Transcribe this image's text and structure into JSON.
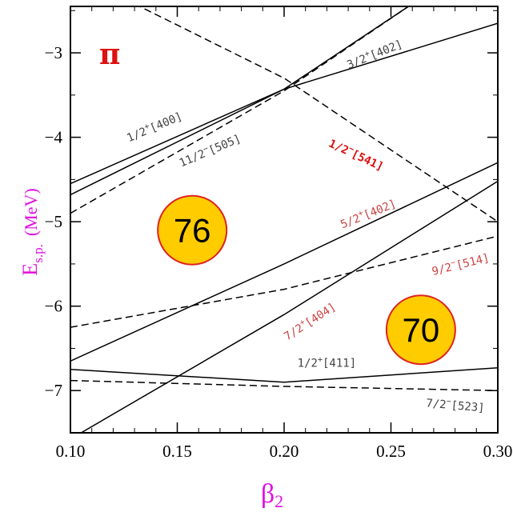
{
  "chart_data": {
    "type": "line",
    "panel_label": "π",
    "xlabel": "β",
    "xlabel_sub": "2",
    "ylabel": "E",
    "ylabel_sub": "s.p.",
    "ylabel_unit": "(MeV)",
    "xlim": [
      0.1,
      0.3
    ],
    "ylim": [
      -7.5,
      -2.45
    ],
    "xticks": [
      0.1,
      0.15,
      0.2,
      0.25,
      0.3
    ],
    "xtick_labels": [
      "0.10",
      "0.15",
      "0.20",
      "0.25",
      "0.30"
    ],
    "yticks": [
      -7,
      -6,
      -5,
      -4,
      -3
    ],
    "ytick_labels": [
      "−7",
      "−6",
      "−5",
      "−4",
      "−3"
    ],
    "series": [
      {
        "name": "3/2+[402]",
        "style": "solid",
        "points": [
          [
            0.1,
            -4.55
          ],
          [
            0.2,
            -3.43
          ],
          [
            0.3,
            -2.65
          ]
        ]
      },
      {
        "name": "1/2+[400]",
        "style": "solid",
        "points": [
          [
            0.1,
            -4.68
          ],
          [
            0.2,
            -3.43
          ],
          [
            0.26,
            -2.42
          ]
        ]
      },
      {
        "name": "11/2-[505]",
        "style": "dashed",
        "points": [
          [
            0.1,
            -4.9
          ],
          [
            0.2,
            -3.45
          ],
          [
            0.26,
            -2.42
          ]
        ]
      },
      {
        "name": "1/2-[541]",
        "style": "dashed",
        "points": [
          [
            0.13,
            -2.42
          ],
          [
            0.2,
            -3.3
          ],
          [
            0.3,
            -5.0
          ]
        ]
      },
      {
        "name": "5/2+[402]",
        "style": "solid",
        "points": [
          [
            0.1,
            -6.65
          ],
          [
            0.2,
            -5.5
          ],
          [
            0.3,
            -4.3
          ]
        ]
      },
      {
        "name": "9/2-[514]",
        "style": "dashed",
        "points": [
          [
            0.1,
            -6.25
          ],
          [
            0.2,
            -5.8
          ],
          [
            0.3,
            -5.17
          ]
        ]
      },
      {
        "name": "7/2+[404]",
        "style": "solid",
        "points": [
          [
            0.105,
            -7.5
          ],
          [
            0.2,
            -6.1
          ],
          [
            0.3,
            -4.52
          ]
        ]
      },
      {
        "name": "1/2+[411]",
        "style": "solid",
        "points": [
          [
            0.1,
            -6.75
          ],
          [
            0.2,
            -6.9
          ],
          [
            0.3,
            -6.73
          ]
        ]
      },
      {
        "name": "7/2-[523]",
        "style": "dashed",
        "points": [
          [
            0.1,
            -6.88
          ],
          [
            0.2,
            -6.95
          ],
          [
            0.3,
            -7.0
          ]
        ]
      }
    ],
    "annotations": [
      {
        "id": "a402",
        "base": "3/2",
        "sup": "+",
        "rest": "[402]",
        "x": 0.243,
        "y": -3.06,
        "angle": -22,
        "color": "#444444",
        "bold": false
      },
      {
        "id": "a400",
        "base": "1/2",
        "sup": "+",
        "rest": "[400]",
        "x": 0.14,
        "y": -3.92,
        "angle": -23,
        "color": "#444444",
        "bold": false
      },
      {
        "id": "a505",
        "base": "11/2",
        "sup": "−",
        "rest": "[505]",
        "x": 0.166,
        "y": -4.2,
        "angle": -23,
        "color": "#444444",
        "bold": false
      },
      {
        "id": "a541",
        "base": "1/2",
        "sup": "−",
        "rest": "[541]",
        "x": 0.233,
        "y": -4.25,
        "angle": 25,
        "color": "#dd1111",
        "bold": true
      },
      {
        "id": "a402b",
        "base": "5/2",
        "sup": "+",
        "rest": "[402]",
        "x": 0.24,
        "y": -4.95,
        "angle": -22,
        "color": "#cc4444",
        "bold": false
      },
      {
        "id": "a514",
        "base": "9/2",
        "sup": "−",
        "rest": "[514]",
        "x": 0.283,
        "y": -5.55,
        "angle": -14,
        "color": "#cc4444",
        "bold": false
      },
      {
        "id": "a404",
        "base": "7/2",
        "sup": "+",
        "rest": "[404]",
        "x": 0.213,
        "y": -6.22,
        "angle": -33,
        "color": "#cc4444",
        "bold": false
      },
      {
        "id": "a411",
        "base": "1/2",
        "sup": "+",
        "rest": "[411]",
        "x": 0.22,
        "y": -6.72,
        "angle": 0,
        "color": "#444444",
        "bold": false
      },
      {
        "id": "a523",
        "base": "7/2",
        "sup": "−",
        "rest": "[523]",
        "x": 0.28,
        "y": -7.22,
        "angle": 5,
        "color": "#444444",
        "bold": false
      }
    ],
    "magic_numbers": [
      {
        "label": "76",
        "x": 0.157,
        "y": -5.1
      },
      {
        "label": "70",
        "x": 0.264,
        "y": -6.28
      }
    ],
    "colors": {
      "axis_title": "#e010e0",
      "panel_label": "#dd1111",
      "circle_fill": "#ffcc00",
      "circle_stroke": "#dd2222"
    }
  }
}
